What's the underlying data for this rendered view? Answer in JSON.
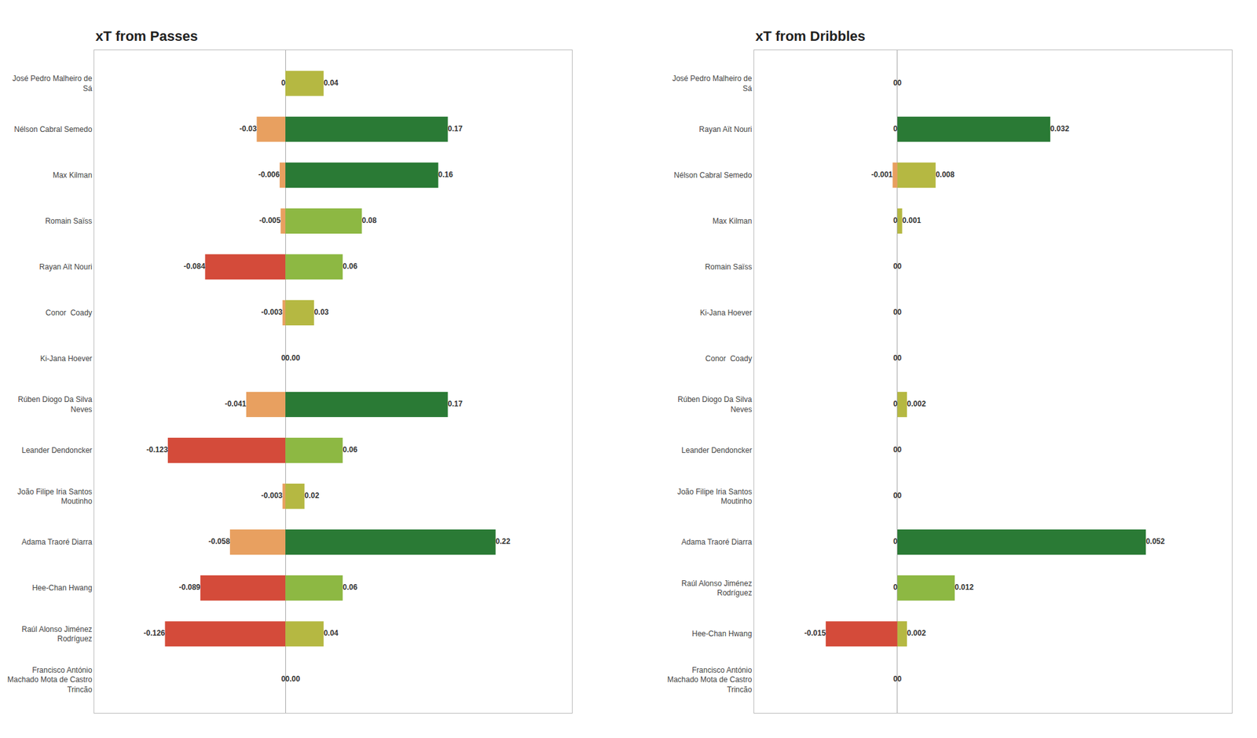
{
  "chart_data": [
    {
      "type": "bar",
      "orientation": "horizontal",
      "title": "xT from Passes",
      "categories": [
        "José Pedro Malheiro de\nSá",
        "Nélson Cabral Semedo",
        "Max Kilman",
        "Romain Saïss",
        "Rayan Aït Nouri",
        "Conor  Coady",
        "Ki-Jana Hoever",
        "Rúben Diogo Da Silva\nNeves",
        "Leander Dendoncker",
        "João Filipe Iria Santos\nMoutinho",
        "Adama Traoré Diarra",
        "Hee-Chan Hwang",
        "Raúl Alonso Jiménez\nRodríguez",
        "Francisco António\nMachado Mota de Castro\nTrincão"
      ],
      "series": [
        {
          "colors": [
            "#E8785A",
            "#E8A060",
            "#E8A060",
            "#E8A060",
            "#D44B3A",
            "#E8A060",
            "#E8785A",
            "#E8A060",
            "#D44B3A",
            "#E8A060",
            "#E8A060",
            "#D44B3A",
            "#D44B3A",
            "#E8785A"
          ],
          "values": [
            0,
            -0.03,
            -0.006,
            -0.005,
            -0.084,
            -0.003,
            0,
            -0.041,
            -0.123,
            -0.003,
            -0.058,
            -0.089,
            -0.126,
            0
          ],
          "value_labels": [
            "0",
            "-0.03",
            "-0.006",
            "-0.005",
            "-0.084",
            "-0.003",
            "0",
            "-0.041",
            "-0.123",
            "-0.003",
            "-0.058",
            "-0.089",
            "-0.126",
            "0"
          ]
        },
        {
          "colors": [
            "#B5B842",
            "#2A7A35",
            "#2A7A35",
            "#8DB843",
            "#8DB843",
            "#B5B842",
            "#B5B842",
            "#2A7A35",
            "#8DB843",
            "#B5B842",
            "#2A7A35",
            "#8DB843",
            "#B5B842",
            "#B5B842"
          ],
          "values": [
            0.04,
            0.17,
            0.16,
            0.08,
            0.06,
            0.03,
            0,
            0.17,
            0.06,
            0.02,
            0.22,
            0.06,
            0.04,
            0
          ],
          "value_labels": [
            "0.04",
            "0.17",
            "0.16",
            "0.08",
            "0.06",
            "0.03",
            "0.00",
            "0.17",
            "0.06",
            "0.02",
            "0.22",
            "0.06",
            "0.04",
            "0.00"
          ]
        }
      ],
      "xlim": [
        -0.2,
        0.3
      ],
      "grid": false,
      "data_labels": true,
      "tick_labels": "y"
    },
    {
      "type": "bar",
      "orientation": "horizontal",
      "title": "xT from Dribbles",
      "categories": [
        "José Pedro Malheiro de\nSá",
        "Rayan Aït Nouri",
        "Nélson Cabral Semedo",
        "Max Kilman",
        "Romain Saïss",
        "Ki-Jana Hoever",
        "Conor  Coady",
        "Rúben Diogo Da Silva\nNeves",
        "Leander Dendoncker",
        "João Filipe Iria Santos\nMoutinho",
        "Adama Traoré Diarra",
        "Raúl Alonso Jiménez\nRodríguez",
        "Hee-Chan Hwang",
        "Francisco António\nMachado Mota de Castro\nTrincão"
      ],
      "series": [
        {
          "colors": [
            "#E8785A",
            "#E8785A",
            "#E8A060",
            "#E8785A",
            "#E8785A",
            "#E8785A",
            "#E8785A",
            "#E8785A",
            "#E8785A",
            "#E8785A",
            "#E8785A",
            "#E8785A",
            "#D44B3A",
            "#E8785A"
          ],
          "values": [
            0,
            0,
            -0.001,
            0,
            0,
            0,
            0,
            0,
            0,
            0,
            0,
            0,
            -0.015,
            0
          ],
          "value_labels": [
            "0",
            "0",
            "-0.001",
            "0",
            "0",
            "0",
            "0",
            "0",
            "0",
            "0",
            "0",
            "0",
            "-0.015",
            "0"
          ]
        },
        {
          "colors": [
            "#B5B842",
            "#2A7A35",
            "#B5B842",
            "#B5B842",
            "#B5B842",
            "#B5B842",
            "#B5B842",
            "#B5B842",
            "#B5B842",
            "#B5B842",
            "#2A7A35",
            "#8DB843",
            "#B5B842",
            "#B5B842"
          ],
          "values": [
            0,
            0.032,
            0.008,
            0.001,
            0,
            0,
            0,
            0.002,
            0,
            0,
            0.052,
            0.012,
            0.002,
            0
          ],
          "value_labels": [
            "0",
            "0.032",
            "0.008",
            "0.001",
            "0",
            "0",
            "0",
            "0.002",
            "0",
            "0",
            "0.052",
            "0.012",
            "0.002",
            "0"
          ]
        }
      ],
      "xlim": [
        -0.03,
        0.07
      ],
      "grid": false,
      "data_labels": true,
      "tick_labels": "y"
    }
  ]
}
